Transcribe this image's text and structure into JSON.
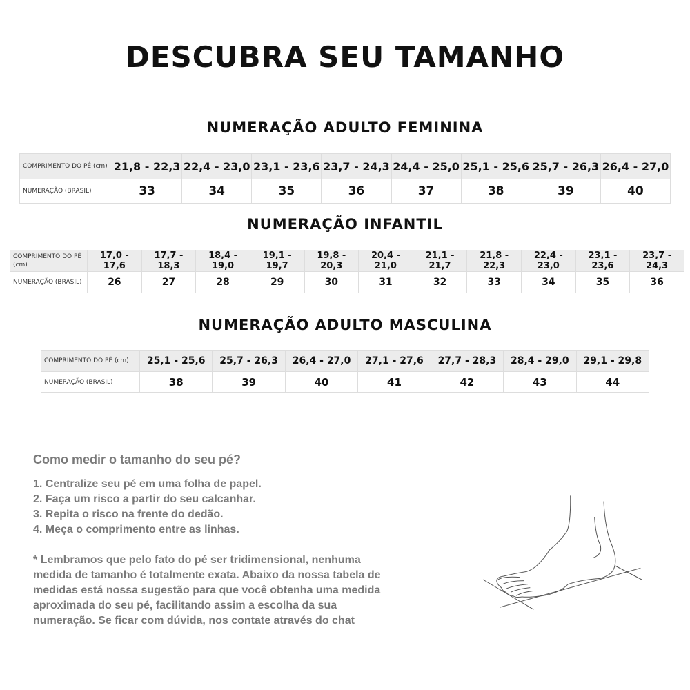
{
  "title": "DESCUBRA SEU TAMANHO",
  "row_labels": {
    "length": "COMPRIMENTO DO PÉ (cm)",
    "size": "NUMERAÇÃO (BRASIL)"
  },
  "tables": [
    {
      "title": "NUMERAÇÃO ADULTO FEMININA",
      "lengths": [
        "21,8 - 22,3",
        "22,4 - 23,0",
        "23,1 - 23,6",
        "23,7 - 24,3",
        "24,4 - 25,0",
        "25,1 - 25,6",
        "25,7 - 26,3",
        "26,4 - 27,0"
      ],
      "sizes": [
        "33",
        "34",
        "35",
        "36",
        "37",
        "38",
        "39",
        "40"
      ]
    },
    {
      "title": "NUMERAÇÃO INFANTIL",
      "lengths": [
        "17,0 - 17,6",
        "17,7 - 18,3",
        "18,4 - 19,0",
        "19,1 - 19,7",
        "19,8 - 20,3",
        "20,4 - 21,0",
        "21,1 - 21,7",
        "21,8 - 22,3",
        "22,4 - 23,0",
        "23,1 - 23,6",
        "23,7 - 24,3"
      ],
      "sizes": [
        "26",
        "27",
        "28",
        "29",
        "30",
        "31",
        "32",
        "33",
        "34",
        "35",
        "36"
      ]
    },
    {
      "title": "NUMERAÇÃO ADULTO MASCULINA",
      "lengths": [
        "25,1 - 25,6",
        "25,7 - 26,3",
        "26,4 - 27,0",
        "27,1 - 27,6",
        "27,7 - 28,3",
        "28,4 - 29,0",
        "29,1 - 29,8"
      ],
      "sizes": [
        "38",
        "39",
        "40",
        "41",
        "42",
        "43",
        "44"
      ]
    }
  ],
  "how_to": {
    "heading": "Como medir o tamanho do seu pé?",
    "steps": [
      "1. Centralize seu pé em uma folha de papel.",
      "2. Faça um risco a partir do seu calcanhar.",
      "3. Repita o risco na frente do dedão.",
      "4. Meça o comprimento entre as linhas."
    ],
    "note_lines": [
      "* Lembramos que pelo fato do pé ser tridimensional, nenhuma",
      "medida de tamanho é totalmente exata. Abaixo da nossa tabela de",
      "medidas está nossa sugestão para que você obtenha uma medida",
      "aproximada do seu pé, facilitando assim a escolha da sua",
      "numeração. Se ficar com dúvida, nos contate através do chat"
    ]
  },
  "illustration": "foot-measurement-drawing"
}
